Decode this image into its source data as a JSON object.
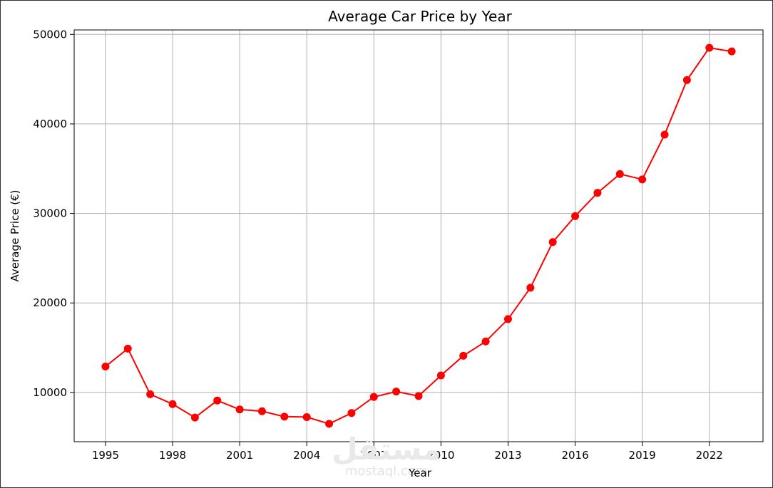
{
  "chart_data": {
    "type": "line",
    "title": "Average Car Price by Year",
    "xlabel": "Year",
    "ylabel": "Average Price (€)",
    "xlim": [
      1993.6,
      2024.4
    ],
    "ylim": [
      4500,
      50500
    ],
    "xticks": [
      1995,
      1998,
      2001,
      2004,
      2007,
      2010,
      2013,
      2016,
      2019,
      2022
    ],
    "yticks": [
      10000,
      20000,
      30000,
      40000,
      50000
    ],
    "grid": true,
    "color": "#ff0000",
    "marker": "circle",
    "x": [
      1995,
      1996,
      1997,
      1998,
      1999,
      2000,
      2001,
      2002,
      2003,
      2004,
      2005,
      2006,
      2007,
      2008,
      2009,
      2010,
      2011,
      2012,
      2013,
      2014,
      2015,
      2016,
      2017,
      2018,
      2019,
      2020,
      2021,
      2022,
      2023
    ],
    "y": [
      12900,
      14900,
      9800,
      8700,
      7200,
      9100,
      8100,
      7900,
      7300,
      7250,
      6500,
      7700,
      9500,
      10100,
      9600,
      11900,
      14100,
      15700,
      18200,
      21700,
      26800,
      29700,
      32300,
      34400,
      33800,
      38800,
      44900,
      48500,
      48100
    ]
  },
  "watermark": {
    "arabic": "مستقل",
    "latin": "mostaql.com"
  }
}
